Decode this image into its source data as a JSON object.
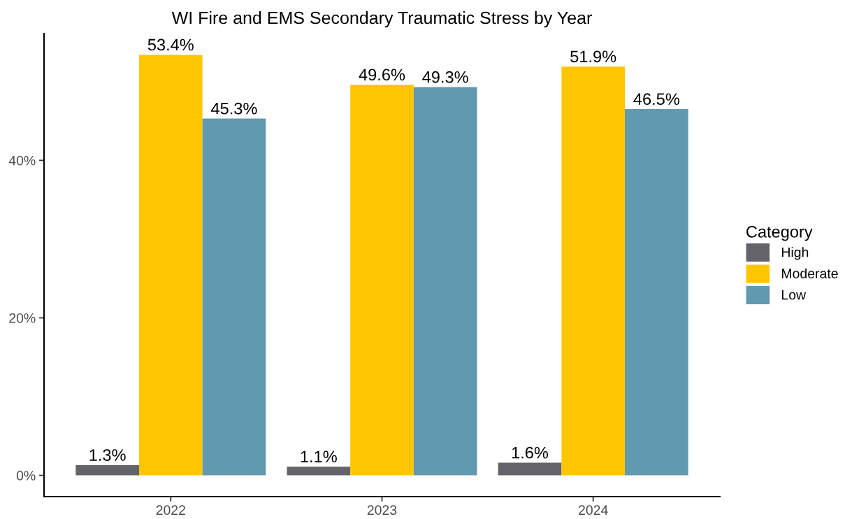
{
  "chart_data": {
    "type": "bar",
    "title": "WI Fire and EMS Secondary Traumatic Stress by Year",
    "categories": [
      "2022",
      "2023",
      "2024"
    ],
    "series": [
      {
        "name": "High",
        "color": "#636369",
        "values": [
          1.3,
          1.1,
          1.6
        ],
        "value_labels": [
          "1.3%",
          "1.1%",
          "1.6%"
        ]
      },
      {
        "name": "Moderate",
        "color": "#ffc500",
        "values": [
          53.4,
          49.6,
          51.9
        ],
        "value_labels": [
          "53.4%",
          "49.6%",
          "51.9%"
        ]
      },
      {
        "name": "Low",
        "color": "#6199b0",
        "values": [
          45.3,
          49.3,
          46.5
        ],
        "value_labels": [
          "45.3%",
          "49.3%",
          "46.5%"
        ]
      }
    ],
    "legend_title": "Category",
    "legend": "right",
    "ylim": [
      -2.7,
      56.1
    ],
    "yticks": [
      {
        "value": 0,
        "label": "0%"
      },
      {
        "value": 20,
        "label": "20%"
      },
      {
        "value": 40,
        "label": "40%"
      }
    ]
  }
}
